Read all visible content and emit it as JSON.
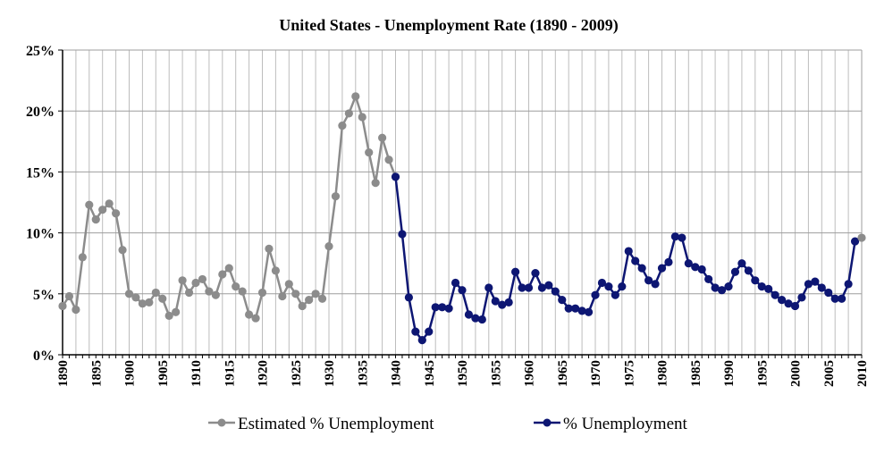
{
  "chart_data": {
    "type": "line",
    "title": "United States - Unemployment Rate (1890 - 2009)",
    "xlabel": "",
    "ylabel": "",
    "xlim": [
      1890,
      2010
    ],
    "ylim": [
      0,
      25
    ],
    "y_ticks": [
      "0%",
      "5%",
      "10%",
      "15%",
      "20%",
      "25%"
    ],
    "x_ticks": [
      "1890",
      "1895",
      "1900",
      "1905",
      "1910",
      "1915",
      "1920",
      "1925",
      "1930",
      "1935",
      "1940",
      "1945",
      "1950",
      "1955",
      "1960",
      "1965",
      "1970",
      "1975",
      "1980",
      "1985",
      "1990",
      "1995",
      "2000",
      "2005",
      "2010"
    ],
    "grid": true,
    "legend_position": "bottom",
    "series": [
      {
        "name": "Estimated % Unemployment",
        "color": "#8c8c8c",
        "x": [
          1890,
          1891,
          1892,
          1893,
          1894,
          1895,
          1896,
          1897,
          1898,
          1899,
          1900,
          1901,
          1902,
          1903,
          1904,
          1905,
          1906,
          1907,
          1908,
          1909,
          1910,
          1911,
          1912,
          1913,
          1914,
          1915,
          1916,
          1917,
          1918,
          1919,
          1920,
          1921,
          1922,
          1923,
          1924,
          1925,
          1926,
          1927,
          1928,
          1929,
          1930,
          1931,
          1932,
          1933,
          1934,
          1935,
          1936,
          1937,
          1938,
          1939,
          1940
        ],
        "values": [
          4.0,
          4.8,
          3.7,
          8.0,
          12.3,
          11.1,
          11.9,
          12.4,
          11.6,
          8.6,
          5.0,
          4.7,
          4.2,
          4.3,
          5.1,
          4.6,
          3.2,
          3.5,
          6.1,
          5.1,
          5.9,
          6.2,
          5.2,
          4.9,
          6.6,
          7.1,
          5.6,
          5.2,
          3.3,
          3.0,
          5.1,
          8.7,
          6.9,
          4.8,
          5.8,
          5.0,
          4.0,
          4.5,
          5.0,
          4.6,
          8.9,
          13.0,
          18.8,
          19.8,
          21.2,
          19.5,
          16.6,
          14.1,
          17.8,
          16.0,
          14.6
        ]
      },
      {
        "name": "% Unemployment",
        "color": "#0d1673",
        "x": [
          1940,
          1941,
          1942,
          1943,
          1944,
          1945,
          1946,
          1947,
          1948,
          1949,
          1950,
          1951,
          1952,
          1953,
          1954,
          1955,
          1956,
          1957,
          1958,
          1959,
          1960,
          1961,
          1962,
          1963,
          1964,
          1965,
          1966,
          1967,
          1968,
          1969,
          1970,
          1971,
          1972,
          1973,
          1974,
          1975,
          1976,
          1977,
          1978,
          1979,
          1980,
          1981,
          1982,
          1983,
          1984,
          1985,
          1986,
          1987,
          1988,
          1989,
          1990,
          1991,
          1992,
          1993,
          1994,
          1995,
          1996,
          1997,
          1998,
          1999,
          2000,
          2001,
          2002,
          2003,
          2004,
          2005,
          2006,
          2007,
          2008,
          2009
        ],
        "values": [
          14.6,
          9.9,
          4.7,
          1.9,
          1.2,
          1.9,
          3.9,
          3.9,
          3.8,
          5.9,
          5.3,
          3.3,
          3.0,
          2.9,
          5.5,
          4.4,
          4.1,
          4.3,
          6.8,
          5.5,
          5.5,
          6.7,
          5.5,
          5.7,
          5.2,
          4.5,
          3.8,
          3.8,
          3.6,
          3.5,
          4.9,
          5.9,
          5.6,
          4.9,
          5.6,
          8.5,
          7.7,
          7.1,
          6.1,
          5.8,
          7.1,
          7.6,
          9.7,
          9.6,
          7.5,
          7.2,
          7.0,
          6.2,
          5.5,
          5.3,
          5.6,
          6.8,
          7.5,
          6.9,
          6.1,
          5.6,
          5.4,
          4.9,
          4.5,
          4.2,
          4.0,
          4.7,
          5.8,
          6.0,
          5.5,
          5.1,
          4.6,
          4.6,
          5.8,
          9.3
        ]
      }
    ],
    "extra_points": [
      {
        "x": 2010,
        "value": 9.6,
        "color": "#8c8c8c"
      }
    ]
  }
}
